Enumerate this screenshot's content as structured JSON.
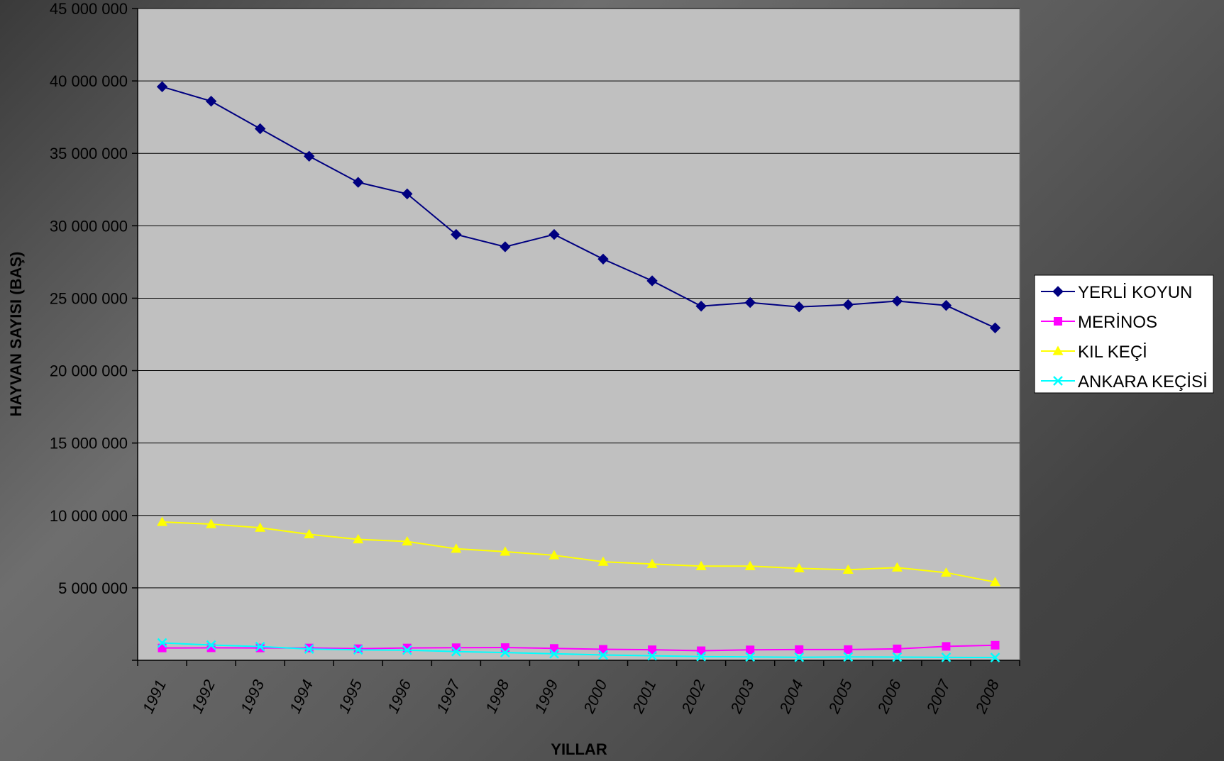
{
  "chart_data": {
    "type": "line",
    "xlabel": "YILLAR",
    "ylabel": "HAYVAN SAYISI (BAŞ)",
    "categories": [
      "1991",
      "1992",
      "1993",
      "1994",
      "1995",
      "1996",
      "1997",
      "1998",
      "1999",
      "2000",
      "2001",
      "2002",
      "2003",
      "2004",
      "2005",
      "2006",
      "2007",
      "2008"
    ],
    "ylim": [
      0,
      45000000
    ],
    "yticks": [
      0,
      5000000,
      10000000,
      15000000,
      20000000,
      25000000,
      30000000,
      35000000,
      40000000,
      45000000
    ],
    "ytick_labels": [
      "",
      "5 000 000",
      "10 000 000",
      "15 000 000",
      "20 000 000",
      "25 000 000",
      "30 000 000",
      "35 000 000",
      "40 000 000",
      "45 000 000"
    ],
    "grid": true,
    "legend_position": "right",
    "series": [
      {
        "name": "YERLİ KOYUN",
        "color": "#000080",
        "marker": "diamond",
        "values": [
          39600000,
          38600000,
          36700000,
          34800000,
          33000000,
          32200000,
          29400000,
          28550000,
          29400000,
          27700000,
          26200000,
          24450000,
          24700000,
          24400000,
          24550000,
          24800000,
          24500000,
          22950000
        ]
      },
      {
        "name": "MERİNOS",
        "color": "#FF00FF",
        "marker": "square",
        "values": [
          850000,
          860000,
          850000,
          850000,
          800000,
          850000,
          870000,
          880000,
          820000,
          760000,
          730000,
          660000,
          720000,
          740000,
          740000,
          790000,
          960000,
          1040000
        ]
      },
      {
        "name": "KIL KEÇİ",
        "color": "#FFFF00",
        "marker": "triangle",
        "values": [
          9550000,
          9400000,
          9150000,
          8700000,
          8350000,
          8200000,
          7700000,
          7500000,
          7250000,
          6800000,
          6650000,
          6500000,
          6500000,
          6350000,
          6250000,
          6400000,
          6050000,
          5400000
        ]
      },
      {
        "name": "ANKARA KEÇİSİ",
        "color": "#00FFFF",
        "marker": "x",
        "values": [
          1200000,
          1050000,
          950000,
          780000,
          720000,
          700000,
          600000,
          530000,
          450000,
          370000,
          310000,
          260000,
          230000,
          210000,
          230000,
          220000,
          200000,
          190000
        ]
      }
    ]
  }
}
